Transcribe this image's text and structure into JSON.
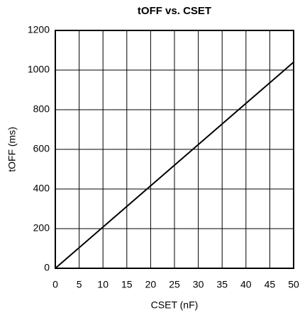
{
  "chart_data": {
    "type": "line",
    "title": "tOFF vs. CSET",
    "x_label": "CSET (nF)",
    "y_label": "tOFF (ms)",
    "x": [
      0,
      10,
      20,
      30,
      40,
      50
    ],
    "series": [
      {
        "name": "tOFF",
        "color": "#000000",
        "values": [
          0,
          208,
          416,
          624,
          832,
          1040
        ]
      }
    ],
    "xlim": [
      0,
      50
    ],
    "xticks": [
      0,
      5,
      10,
      15,
      20,
      25,
      30,
      35,
      40,
      45,
      50
    ],
    "ylim": [
      0,
      1200
    ],
    "yticks": [
      0,
      200,
      400,
      600,
      800,
      1000,
      1200
    ],
    "grid": true
  }
}
